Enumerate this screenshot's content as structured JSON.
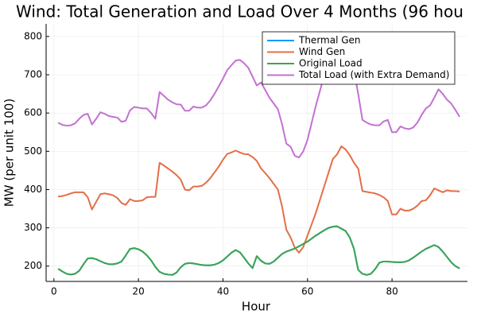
{
  "chart_data": {
    "type": "line",
    "title": "Wind: Total Generation and Load Over 4 Months (96 hou",
    "x_label": "Hour",
    "y_label": "MW (per unit 100)",
    "x": [
      1,
      2,
      3,
      4,
      5,
      6,
      7,
      8,
      9,
      10,
      11,
      12,
      13,
      14,
      15,
      16,
      17,
      18,
      19,
      20,
      21,
      22,
      23,
      24,
      25,
      26,
      27,
      28,
      29,
      30,
      31,
      32,
      33,
      34,
      35,
      36,
      37,
      38,
      39,
      40,
      41,
      42,
      43,
      44,
      45,
      46,
      47,
      48,
      49,
      50,
      51,
      52,
      53,
      54,
      55,
      56,
      57,
      58,
      59,
      60,
      61,
      62,
      63,
      64,
      65,
      66,
      67,
      68,
      69,
      70,
      71,
      72,
      73,
      74,
      75,
      76,
      77,
      78,
      79,
      80,
      81,
      82,
      83,
      84,
      85,
      86,
      87,
      88,
      89,
      90,
      91,
      92,
      93,
      94,
      95,
      96
    ],
    "series": [
      {
        "name": "Thermal Gen",
        "color": "#009afa",
        "values": [
          193,
          186,
          180,
          178,
          180,
          188,
          205,
          220,
          221,
          218,
          213,
          208,
          205,
          205,
          207,
          212,
          228,
          245,
          247,
          244,
          238,
          228,
          215,
          198,
          185,
          180,
          178,
          177,
          183,
          197,
          206,
          208,
          207,
          205,
          203,
          202,
          202,
          204,
          208,
          215,
          225,
          235,
          242,
          236,
          222,
          207,
          195,
          226,
          214,
          207,
          206,
          212,
          222,
          232,
          238,
          242,
          246,
          252,
          258,
          264,
          272,
          280,
          287,
          294,
          300,
          303,
          304,
          298,
          292,
          275,
          245,
          190,
          180,
          177,
          180,
          192,
          209,
          212,
          212,
          211,
          210,
          210,
          211,
          215,
          222,
          230,
          238,
          245,
          250,
          255,
          250,
          238,
          224,
          210,
          200,
          194
        ]
      },
      {
        "name": "Wind Gen",
        "color": "#e36f47",
        "values": [
          382,
          383,
          386,
          390,
          393,
          393,
          393,
          380,
          348,
          368,
          388,
          390,
          388,
          385,
          378,
          365,
          360,
          375,
          370,
          370,
          372,
          380,
          381,
          381,
          470,
          463,
          455,
          447,
          438,
          426,
          400,
          398,
          408,
          408,
          410,
          418,
          430,
          445,
          460,
          478,
          493,
          497,
          502,
          497,
          493,
          492,
          485,
          475,
          455,
          443,
          430,
          415,
          400,
          355,
          295,
          275,
          248,
          235,
          250,
          280,
          310,
          340,
          375,
          410,
          445,
          480,
          492,
          513,
          505,
          490,
          470,
          455,
          396,
          394,
          392,
          390,
          386,
          380,
          370,
          335,
          335,
          350,
          345,
          345,
          350,
          358,
          370,
          372,
          385,
          403,
          398,
          393,
          398,
          396,
          396,
          395
        ]
      },
      {
        "name": "Original Load",
        "color": "#3ea44e",
        "values": [
          193,
          186,
          180,
          178,
          180,
          188,
          205,
          220,
          221,
          218,
          213,
          208,
          205,
          205,
          207,
          212,
          228,
          245,
          247,
          244,
          238,
          228,
          215,
          198,
          185,
          180,
          178,
          177,
          183,
          197,
          206,
          208,
          207,
          205,
          203,
          202,
          202,
          204,
          208,
          215,
          225,
          235,
          242,
          236,
          222,
          207,
          195,
          226,
          214,
          207,
          206,
          212,
          222,
          232,
          238,
          242,
          246,
          252,
          258,
          264,
          272,
          280,
          287,
          294,
          300,
          303,
          304,
          298,
          292,
          275,
          245,
          190,
          180,
          177,
          180,
          192,
          209,
          212,
          212,
          211,
          210,
          210,
          211,
          215,
          222,
          230,
          238,
          245,
          250,
          255,
          250,
          238,
          224,
          210,
          200,
          194
        ]
      },
      {
        "name": "Total Load (with Extra Demand)",
        "color": "#c371d2",
        "values": [
          575,
          569,
          567,
          568,
          573,
          585,
          595,
          598,
          570,
          585,
          602,
          598,
          592,
          590,
          588,
          577,
          580,
          607,
          616,
          614,
          612,
          612,
          600,
          585,
          655,
          645,
          635,
          628,
          623,
          622,
          606,
          606,
          617,
          614,
          614,
          620,
          633,
          650,
          670,
          690,
          712,
          725,
          737,
          739,
          730,
          718,
          695,
          672,
          680,
          660,
          640,
          625,
          610,
          570,
          520,
          512,
          488,
          484,
          500,
          530,
          575,
          620,
          660,
          700,
          740,
          770,
          790,
          812,
          800,
          760,
          710,
          650,
          582,
          575,
          570,
          568,
          568,
          578,
          582,
          550,
          550,
          565,
          560,
          558,
          562,
          575,
          595,
          612,
          620,
          640,
          662,
          650,
          635,
          625,
          608,
          590
        ]
      }
    ],
    "xlim": [
      -1.85,
      97.85
    ],
    "xticks": [
      0,
      20,
      40,
      60,
      80
    ],
    "ylim": [
      160,
      833
    ],
    "yticks": [
      200,
      300,
      400,
      500,
      600,
      700,
      800
    ],
    "grid": true,
    "legend": "top-right"
  }
}
